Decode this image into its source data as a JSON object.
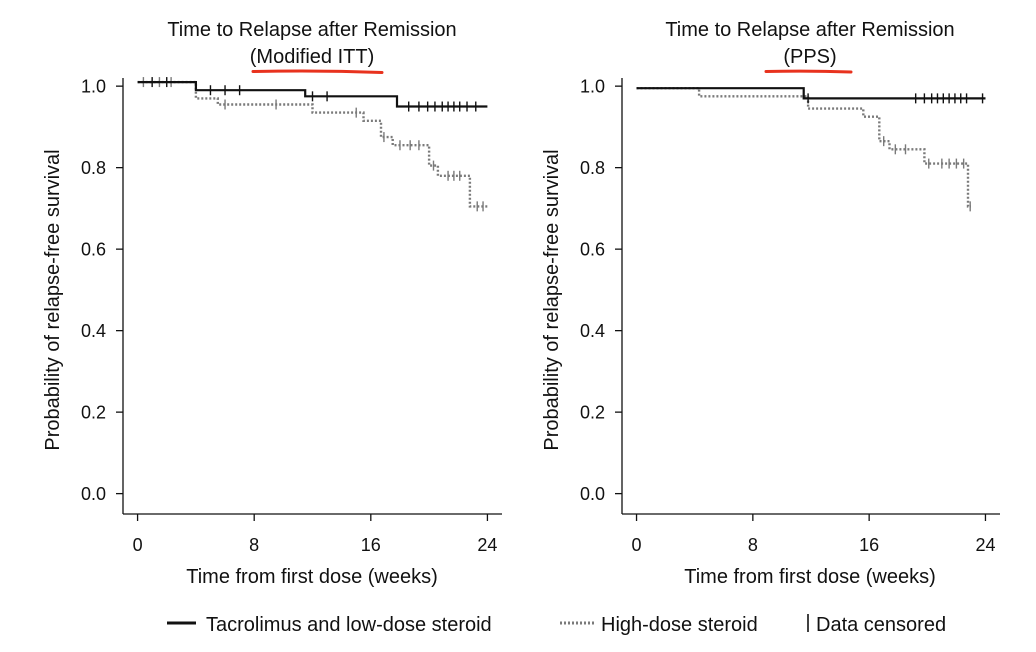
{
  "colors": {
    "tacrolimus": "#111111",
    "high_dose": "#7a7a7a",
    "annotation_underline": "#e8321e",
    "axis": "#111111"
  },
  "legend": {
    "tacrolimus": "Tacrolimus and low-dose steroid",
    "high_dose": "High-dose steroid",
    "censored": "Data censored"
  },
  "chart_data": [
    {
      "type": "line",
      "title": "Time to Relapse after Remission",
      "subtitle": "(Modified ITT)",
      "xlabel": "Time from first dose (weeks)",
      "ylabel": "Probability of relapse-free survival",
      "xlim": [
        -1,
        25
      ],
      "ylim": [
        -0.05,
        1.02
      ],
      "xticks": [
        "0",
        "8",
        "16",
        "24"
      ],
      "xtick_values": [
        0,
        8,
        16,
        24
      ],
      "yticks": [
        "0.0",
        "0.2",
        "0.4",
        "0.6",
        "0.8",
        "1.0"
      ],
      "ytick_values": [
        0,
        0.2,
        0.4,
        0.6,
        0.8,
        1.0
      ],
      "grid": false,
      "series": [
        {
          "key": "tacrolimus",
          "style": "solid",
          "steps": [
            [
              0,
              1.01
            ],
            [
              4,
              0.99
            ],
            [
              11.5,
              0.975
            ],
            [
              17.8,
              0.95
            ],
            [
              24,
              0.95
            ]
          ],
          "censored": [
            [
              1,
              1.01
            ],
            [
              2,
              1.01
            ],
            [
              5,
              0.99
            ],
            [
              6,
              0.99
            ],
            [
              7,
              0.99
            ],
            [
              12,
              0.975
            ],
            [
              13,
              0.975
            ],
            [
              18.6,
              0.95
            ],
            [
              19.3,
              0.95
            ],
            [
              19.9,
              0.95
            ],
            [
              20.4,
              0.95
            ],
            [
              20.9,
              0.95
            ],
            [
              21.3,
              0.95
            ],
            [
              21.7,
              0.95
            ],
            [
              22.1,
              0.95
            ],
            [
              22.6,
              0.95
            ],
            [
              23.2,
              0.95
            ]
          ]
        },
        {
          "key": "high_dose",
          "style": "dotted",
          "steps": [
            [
              0,
              1.01
            ],
            [
              4,
              0.97
            ],
            [
              5.5,
              0.955
            ],
            [
              12,
              0.935
            ],
            [
              15.5,
              0.915
            ],
            [
              16.7,
              0.875
            ],
            [
              17.5,
              0.855
            ],
            [
              20,
              0.805
            ],
            [
              20.6,
              0.78
            ],
            [
              22.8,
              0.705
            ],
            [
              24,
              0.705
            ]
          ],
          "censored": [
            [
              0.4,
              1.01
            ],
            [
              1.5,
              1.01
            ],
            [
              2.3,
              1.01
            ],
            [
              6,
              0.955
            ],
            [
              9.5,
              0.955
            ],
            [
              15,
              0.935
            ],
            [
              16.9,
              0.875
            ],
            [
              18,
              0.855
            ],
            [
              18.7,
              0.855
            ],
            [
              19.3,
              0.855
            ],
            [
              20.3,
              0.805
            ],
            [
              21.3,
              0.78
            ],
            [
              21.7,
              0.78
            ],
            [
              22.1,
              0.78
            ],
            [
              23.3,
              0.705
            ],
            [
              23.7,
              0.705
            ]
          ]
        }
      ]
    },
    {
      "type": "line",
      "title": "Time to Relapse after Remission",
      "subtitle": "(PPS)",
      "xlabel": "Time from first dose (weeks)",
      "ylabel": "Probability of relapse-free survival",
      "xlim": [
        -1,
        25
      ],
      "ylim": [
        -0.05,
        1.02
      ],
      "xticks": [
        "0",
        "8",
        "16",
        "24"
      ],
      "xtick_values": [
        0,
        8,
        16,
        24
      ],
      "yticks": [
        "0.0",
        "0.2",
        "0.4",
        "0.6",
        "0.8",
        "1.0"
      ],
      "ytick_values": [
        0,
        0.2,
        0.4,
        0.6,
        0.8,
        1.0
      ],
      "grid": false,
      "series": [
        {
          "key": "tacrolimus",
          "style": "solid",
          "steps": [
            [
              0,
              0.995
            ],
            [
              11.5,
              0.97
            ],
            [
              24,
              0.97
            ]
          ],
          "censored": [
            [
              11.8,
              0.97
            ],
            [
              19.2,
              0.97
            ],
            [
              19.8,
              0.97
            ],
            [
              20.3,
              0.97
            ],
            [
              20.7,
              0.97
            ],
            [
              21.1,
              0.97
            ],
            [
              21.5,
              0.97
            ],
            [
              21.9,
              0.97
            ],
            [
              22.3,
              0.97
            ],
            [
              22.7,
              0.97
            ],
            [
              23.8,
              0.97
            ]
          ]
        },
        {
          "key": "high_dose",
          "style": "dotted",
          "steps": [
            [
              0,
              0.995
            ],
            [
              4.3,
              0.975
            ],
            [
              11.8,
              0.945
            ],
            [
              15.6,
              0.925
            ],
            [
              16.7,
              0.865
            ],
            [
              17.4,
              0.845
            ],
            [
              19.8,
              0.81
            ],
            [
              22.8,
              0.705
            ],
            [
              23,
              0.705
            ]
          ],
          "censored": [
            [
              17,
              0.865
            ],
            [
              17.8,
              0.845
            ],
            [
              18.5,
              0.845
            ],
            [
              20.1,
              0.81
            ],
            [
              21.0,
              0.81
            ],
            [
              21.5,
              0.81
            ],
            [
              22.0,
              0.81
            ],
            [
              22.5,
              0.81
            ],
            [
              22.95,
              0.705
            ]
          ]
        }
      ]
    }
  ]
}
